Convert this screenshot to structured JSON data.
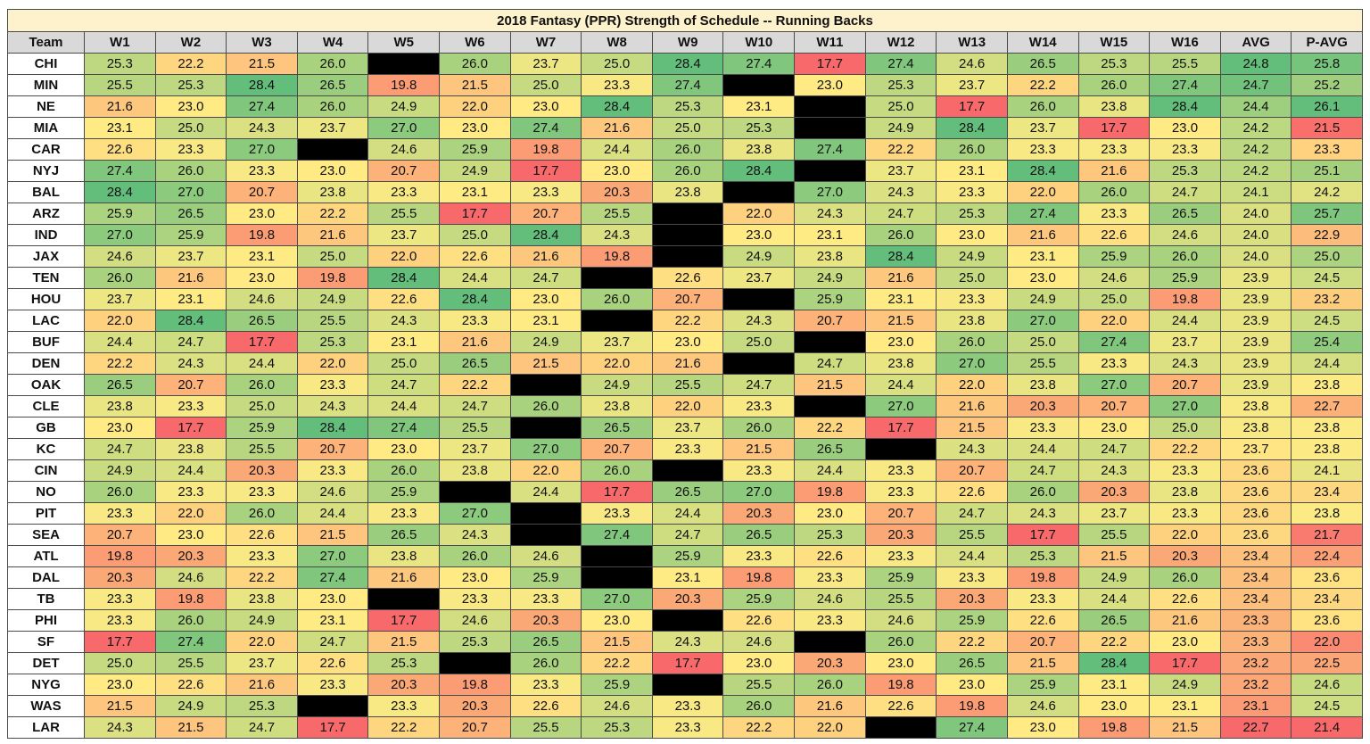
{
  "chart_data": {
    "type": "table",
    "title": "2018 Fantasy (PPR) Strength of Schedule -- Running Backs",
    "columns": [
      "Team",
      "W1",
      "W2",
      "W3",
      "W4",
      "W5",
      "W6",
      "W7",
      "W8",
      "W9",
      "W10",
      "W11",
      "W12",
      "W13",
      "W14",
      "W15",
      "W16",
      "AVG",
      "P-AVG"
    ],
    "color_scale": {
      "low": "#f8696b",
      "mid": "#ffeb84",
      "high": "#63be7b"
    },
    "bye_color": "#000000",
    "rows": [
      {
        "team": "CHI",
        "values": [
          "25.3",
          "22.2",
          "21.5",
          "26.0",
          null,
          "26.0",
          "23.7",
          "25.0",
          "28.4",
          "27.4",
          "17.7",
          "27.4",
          "24.6",
          "26.5",
          "25.3",
          "25.5",
          "24.8",
          "25.8"
        ]
      },
      {
        "team": "MIN",
        "values": [
          "25.5",
          "25.3",
          "28.4",
          "26.5",
          "19.8",
          "21.5",
          "25.0",
          "23.3",
          "27.4",
          null,
          "23.0",
          "25.3",
          "23.7",
          "22.2",
          "26.0",
          "27.4",
          "24.7",
          "25.2"
        ]
      },
      {
        "team": "NE",
        "values": [
          "21.6",
          "23.0",
          "27.4",
          "26.0",
          "24.9",
          "22.0",
          "23.0",
          "28.4",
          "25.3",
          "23.1",
          null,
          "25.0",
          "17.7",
          "26.0",
          "23.8",
          "28.4",
          "24.4",
          "26.1"
        ]
      },
      {
        "team": "MIA",
        "values": [
          "23.1",
          "25.0",
          "24.3",
          "23.7",
          "27.0",
          "23.0",
          "27.4",
          "21.6",
          "25.0",
          "25.3",
          null,
          "24.9",
          "28.4",
          "23.7",
          "17.7",
          "23.0",
          "24.2",
          "21.5"
        ]
      },
      {
        "team": "CAR",
        "values": [
          "22.6",
          "23.3",
          "27.0",
          null,
          "24.6",
          "25.9",
          "19.8",
          "24.4",
          "26.0",
          "23.8",
          "27.4",
          "22.2",
          "26.0",
          "23.3",
          "23.3",
          "23.3",
          "24.2",
          "23.3"
        ]
      },
      {
        "team": "NYJ",
        "values": [
          "27.4",
          "26.0",
          "23.3",
          "23.0",
          "20.7",
          "24.9",
          "17.7",
          "23.0",
          "26.0",
          "28.4",
          null,
          "23.7",
          "23.1",
          "28.4",
          "21.6",
          "25.3",
          "24.2",
          "25.1"
        ]
      },
      {
        "team": "BAL",
        "values": [
          "28.4",
          "27.0",
          "20.7",
          "23.8",
          "23.3",
          "23.1",
          "23.3",
          "20.3",
          "23.8",
          null,
          "27.0",
          "24.3",
          "23.3",
          "22.0",
          "26.0",
          "24.7",
          "24.1",
          "24.2"
        ]
      },
      {
        "team": "ARZ",
        "values": [
          "25.9",
          "26.5",
          "23.0",
          "22.2",
          "25.5",
          "17.7",
          "20.7",
          "25.5",
          null,
          "22.0",
          "24.3",
          "24.7",
          "25.3",
          "27.4",
          "23.3",
          "26.5",
          "24.0",
          "25.7"
        ]
      },
      {
        "team": "IND",
        "values": [
          "27.0",
          "25.9",
          "19.8",
          "21.6",
          "23.7",
          "25.0",
          "28.4",
          "24.3",
          null,
          "23.0",
          "23.1",
          "26.0",
          "23.0",
          "21.6",
          "22.6",
          "24.6",
          "24.0",
          "22.9"
        ]
      },
      {
        "team": "JAX",
        "values": [
          "24.6",
          "23.7",
          "23.1",
          "25.0",
          "22.0",
          "22.6",
          "21.6",
          "19.8",
          null,
          "24.9",
          "23.8",
          "28.4",
          "24.9",
          "23.1",
          "25.9",
          "26.0",
          "24.0",
          "25.0"
        ]
      },
      {
        "team": "TEN",
        "values": [
          "26.0",
          "21.6",
          "23.0",
          "19.8",
          "28.4",
          "24.4",
          "24.7",
          null,
          "22.6",
          "23.7",
          "24.9",
          "21.6",
          "25.0",
          "23.0",
          "24.6",
          "25.9",
          "23.9",
          "24.5"
        ]
      },
      {
        "team": "HOU",
        "values": [
          "23.7",
          "23.1",
          "24.6",
          "24.9",
          "22.6",
          "28.4",
          "23.0",
          "26.0",
          "20.7",
          null,
          "25.9",
          "23.1",
          "23.3",
          "24.9",
          "25.0",
          "19.8",
          "23.9",
          "23.2"
        ]
      },
      {
        "team": "LAC",
        "values": [
          "22.0",
          "28.4",
          "26.5",
          "25.5",
          "24.3",
          "23.3",
          "23.1",
          null,
          "22.2",
          "24.3",
          "20.7",
          "21.5",
          "23.8",
          "27.0",
          "22.0",
          "24.4",
          "23.9",
          "24.5"
        ]
      },
      {
        "team": "BUF",
        "values": [
          "24.4",
          "24.7",
          "17.7",
          "25.3",
          "23.1",
          "21.6",
          "24.9",
          "23.7",
          "23.0",
          "25.0",
          null,
          "23.0",
          "26.0",
          "25.0",
          "27.4",
          "23.7",
          "23.9",
          "25.4"
        ]
      },
      {
        "team": "DEN",
        "values": [
          "22.2",
          "24.3",
          "24.4",
          "22.0",
          "25.0",
          "26.5",
          "21.5",
          "22.0",
          "21.6",
          null,
          "24.7",
          "23.8",
          "27.0",
          "25.5",
          "23.3",
          "24.3",
          "23.9",
          "24.4"
        ]
      },
      {
        "team": "OAK",
        "values": [
          "26.5",
          "20.7",
          "26.0",
          "23.3",
          "24.7",
          "22.2",
          null,
          "24.9",
          "25.5",
          "24.7",
          "21.5",
          "24.4",
          "22.0",
          "23.8",
          "27.0",
          "20.7",
          "23.9",
          "23.8"
        ]
      },
      {
        "team": "CLE",
        "values": [
          "23.8",
          "23.3",
          "25.0",
          "24.3",
          "24.4",
          "24.7",
          "26.0",
          "23.8",
          "22.0",
          "23.3",
          null,
          "27.0",
          "21.6",
          "20.3",
          "20.7",
          "27.0",
          "23.8",
          "22.7"
        ]
      },
      {
        "team": "GB",
        "values": [
          "23.0",
          "17.7",
          "25.9",
          "28.4",
          "27.4",
          "25.5",
          null,
          "26.5",
          "23.7",
          "26.0",
          "22.2",
          "17.7",
          "21.5",
          "23.3",
          "23.0",
          "25.0",
          "23.8",
          "23.8"
        ]
      },
      {
        "team": "KC",
        "values": [
          "24.7",
          "23.8",
          "25.5",
          "20.7",
          "23.0",
          "23.7",
          "27.0",
          "20.7",
          "23.3",
          "21.5",
          "26.5",
          null,
          "24.3",
          "24.4",
          "24.7",
          "22.2",
          "23.7",
          "23.8"
        ]
      },
      {
        "team": "CIN",
        "values": [
          "24.9",
          "24.4",
          "20.3",
          "23.3",
          "26.0",
          "23.8",
          "22.0",
          "26.0",
          null,
          "23.3",
          "24.4",
          "23.3",
          "20.7",
          "24.7",
          "24.3",
          "23.3",
          "23.6",
          "24.1"
        ]
      },
      {
        "team": "NO",
        "values": [
          "26.0",
          "23.3",
          "23.3",
          "24.6",
          "25.9",
          null,
          "24.4",
          "17.7",
          "26.5",
          "27.0",
          "19.8",
          "23.3",
          "22.6",
          "26.0",
          "20.3",
          "23.8",
          "23.6",
          "23.4"
        ]
      },
      {
        "team": "PIT",
        "values": [
          "23.3",
          "22.0",
          "26.0",
          "24.4",
          "23.3",
          "27.0",
          null,
          "23.3",
          "24.4",
          "20.3",
          "23.0",
          "20.7",
          "24.7",
          "24.3",
          "23.7",
          "23.3",
          "23.6",
          "23.8"
        ]
      },
      {
        "team": "SEA",
        "values": [
          "20.7",
          "23.0",
          "22.6",
          "21.5",
          "26.5",
          "24.3",
          null,
          "27.4",
          "24.7",
          "26.5",
          "25.3",
          "20.3",
          "25.5",
          "17.7",
          "25.5",
          "22.0",
          "23.6",
          "21.7"
        ]
      },
      {
        "team": "ATL",
        "values": [
          "19.8",
          "20.3",
          "23.3",
          "27.0",
          "23.8",
          "26.0",
          "24.6",
          null,
          "25.9",
          "23.3",
          "22.6",
          "23.3",
          "24.4",
          "25.3",
          "21.5",
          "20.3",
          "23.4",
          "22.4"
        ]
      },
      {
        "team": "DAL",
        "values": [
          "20.3",
          "24.6",
          "22.2",
          "27.4",
          "21.6",
          "23.0",
          "25.9",
          null,
          "23.1",
          "19.8",
          "23.3",
          "25.9",
          "23.3",
          "19.8",
          "24.9",
          "26.0",
          "23.4",
          "23.6"
        ]
      },
      {
        "team": "TB",
        "values": [
          "23.3",
          "19.8",
          "23.8",
          "23.0",
          null,
          "23.3",
          "23.3",
          "27.0",
          "20.3",
          "25.9",
          "24.6",
          "25.5",
          "20.3",
          "23.3",
          "24.4",
          "22.6",
          "23.4",
          "23.4"
        ]
      },
      {
        "team": "PHI",
        "values": [
          "23.3",
          "26.0",
          "24.9",
          "23.1",
          "17.7",
          "24.6",
          "20.3",
          "23.0",
          null,
          "22.6",
          "23.3",
          "24.6",
          "25.9",
          "22.6",
          "26.5",
          "21.6",
          "23.3",
          "23.6"
        ]
      },
      {
        "team": "SF",
        "values": [
          "17.7",
          "27.4",
          "22.0",
          "24.7",
          "21.5",
          "25.3",
          "26.5",
          "21.5",
          "24.3",
          "24.6",
          null,
          "26.0",
          "22.2",
          "20.7",
          "22.2",
          "23.0",
          "23.3",
          "22.0"
        ]
      },
      {
        "team": "DET",
        "values": [
          "25.0",
          "25.5",
          "23.7",
          "22.6",
          "25.3",
          null,
          "26.0",
          "22.2",
          "17.7",
          "23.0",
          "20.3",
          "23.0",
          "26.5",
          "21.5",
          "28.4",
          "17.7",
          "23.2",
          "22.5"
        ]
      },
      {
        "team": "NYG",
        "values": [
          "23.0",
          "22.6",
          "21.6",
          "23.3",
          "20.3",
          "19.8",
          "23.3",
          "25.9",
          null,
          "25.5",
          "26.0",
          "19.8",
          "23.0",
          "25.9",
          "23.1",
          "24.9",
          "23.2",
          "24.6"
        ]
      },
      {
        "team": "WAS",
        "values": [
          "21.5",
          "24.9",
          "25.3",
          null,
          "23.3",
          "20.3",
          "22.6",
          "24.6",
          "23.3",
          "26.0",
          "21.6",
          "22.6",
          "19.8",
          "24.6",
          "23.0",
          "23.1",
          "23.1",
          "24.5"
        ]
      },
      {
        "team": "LAR",
        "values": [
          "24.3",
          "21.5",
          "24.7",
          "17.7",
          "22.2",
          "20.7",
          "25.5",
          "25.3",
          "23.3",
          "22.2",
          "22.0",
          null,
          "27.4",
          "23.0",
          "19.8",
          "21.5",
          "22.7",
          "21.4"
        ]
      }
    ]
  }
}
